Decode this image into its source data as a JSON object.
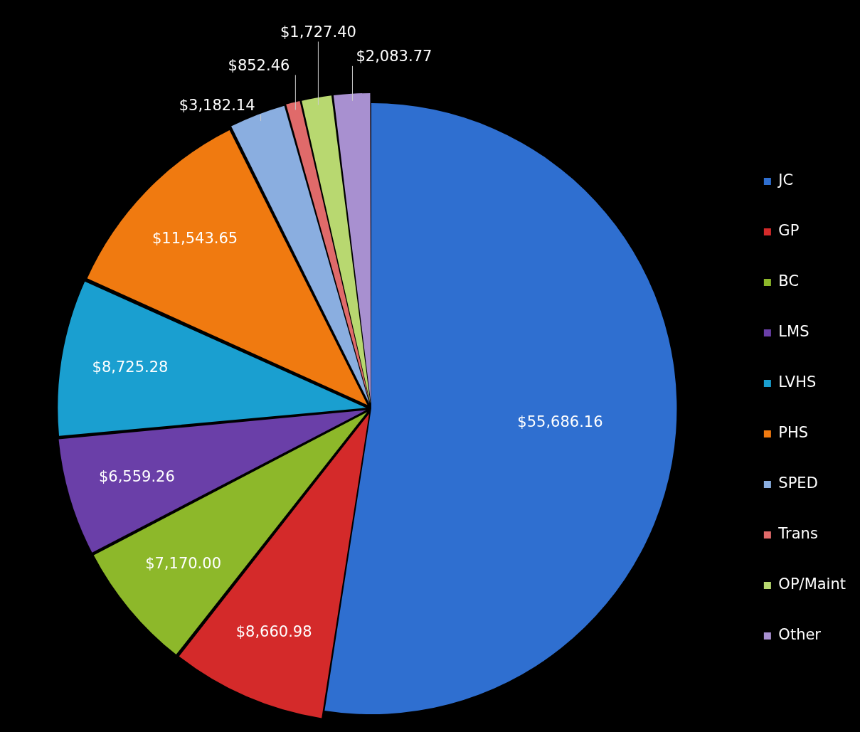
{
  "chart_data": {
    "type": "pie",
    "categories": [
      "JC",
      "GP",
      "BC",
      "LMS",
      "LVHS",
      "PHS",
      "SPED",
      "Trans",
      "OP/Maint",
      "Other"
    ],
    "values": [
      55686.16,
      8660.98,
      7170.0,
      6559.26,
      8725.28,
      11543.65,
      3182.14,
      852.46,
      1727.4,
      2083.77
    ],
    "colors": [
      "#2f6fd0",
      "#d42a2a",
      "#8db82a",
      "#6a3fa8",
      "#1a9fd0",
      "#f07a10",
      "#8aaee0",
      "#e06a6a",
      "#b8d870",
      "#a890d0"
    ],
    "value_labels": [
      "$55,686.16",
      "$8,660.98",
      "$7,170.00",
      "$6,559.26",
      "$8,725.28",
      "$11,543.65",
      "$3,182.14",
      "$852.46",
      "$1,727.40",
      "$2,083.77"
    ],
    "legend": "right"
  }
}
